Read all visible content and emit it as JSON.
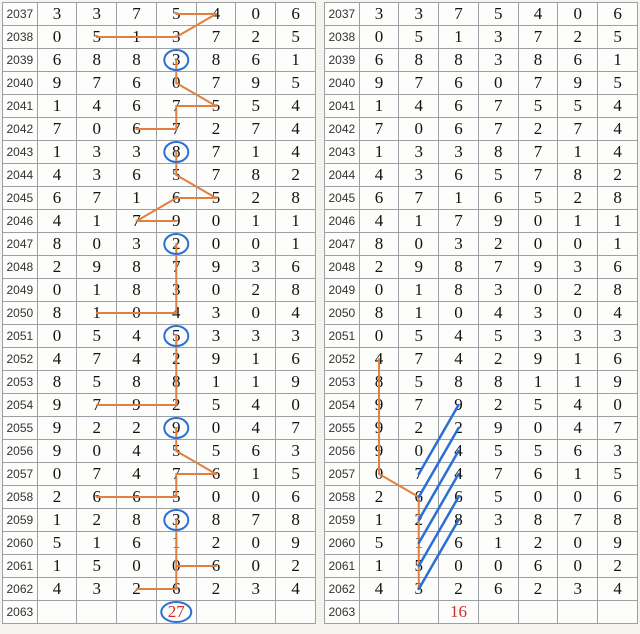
{
  "row_ids": [
    "2037",
    "2038",
    "2039",
    "2040",
    "2041",
    "2042",
    "2043",
    "2044",
    "2045",
    "2046",
    "2047",
    "2048",
    "2049",
    "2050",
    "2051",
    "2052",
    "2053",
    "2054",
    "2055",
    "2056",
    "2057",
    "2058",
    "2059",
    "2060",
    "2061",
    "2062"
  ],
  "footer_id": "2063",
  "left_footer": "27",
  "right_footer": "16",
  "footer_color": "#c9302c",
  "circle_color": "#2a6fd6",
  "line_color_orange": "#e08040",
  "line_color_blue": "#2a6fd6",
  "cell_border_color": "#9aa0a6",
  "background_color": "#f5f3ec",
  "table_background": "#fdfdfb",
  "left": {
    "data": [
      [
        "3",
        "3",
        "7",
        "5",
        "4",
        "0",
        "6"
      ],
      [
        "0",
        "5",
        "1",
        "3",
        "7",
        "2",
        "5"
      ],
      [
        "6",
        "8",
        "8",
        "3",
        "8",
        "6",
        "1"
      ],
      [
        "9",
        "7",
        "6",
        "0",
        "7",
        "9",
        "5"
      ],
      [
        "1",
        "4",
        "6",
        "7",
        "5",
        "5",
        "4"
      ],
      [
        "7",
        "0",
        "6",
        "7",
        "2",
        "7",
        "4"
      ],
      [
        "1",
        "3",
        "3",
        "8",
        "7",
        "1",
        "4"
      ],
      [
        "4",
        "3",
        "6",
        "5",
        "7",
        "8",
        "2"
      ],
      [
        "6",
        "7",
        "1",
        "6",
        "5",
        "2",
        "8"
      ],
      [
        "4",
        "1",
        "7",
        "9",
        "0",
        "1",
        "1"
      ],
      [
        "8",
        "0",
        "3",
        "2",
        "0",
        "0",
        "1"
      ],
      [
        "2",
        "9",
        "8",
        "7",
        "9",
        "3",
        "6"
      ],
      [
        "0",
        "1",
        "8",
        "3",
        "0",
        "2",
        "8"
      ],
      [
        "8",
        "1",
        "0",
        "4",
        "3",
        "0",
        "4"
      ],
      [
        "0",
        "5",
        "4",
        "5",
        "3",
        "3",
        "3"
      ],
      [
        "4",
        "7",
        "4",
        "2",
        "9",
        "1",
        "6"
      ],
      [
        "8",
        "5",
        "8",
        "8",
        "1",
        "1",
        "9"
      ],
      [
        "9",
        "7",
        "9",
        "2",
        "5",
        "4",
        "0"
      ],
      [
        "9",
        "2",
        "2",
        "9",
        "0",
        "4",
        "7"
      ],
      [
        "9",
        "0",
        "4",
        "5",
        "5",
        "6",
        "3"
      ],
      [
        "0",
        "7",
        "4",
        "7",
        "6",
        "1",
        "5"
      ],
      [
        "2",
        "6",
        "6",
        "5",
        "0",
        "0",
        "6"
      ],
      [
        "1",
        "2",
        "8",
        "3",
        "8",
        "7",
        "8"
      ],
      [
        "5",
        "1",
        "6",
        "1",
        "2",
        "0",
        "9"
      ],
      [
        "1",
        "5",
        "0",
        "0",
        "6",
        "0",
        "2"
      ],
      [
        "4",
        "3",
        "2",
        "6",
        "2",
        "3",
        "4"
      ]
    ],
    "circles": [
      {
        "row": 2,
        "col": 3
      },
      {
        "row": 6,
        "col": 3
      },
      {
        "row": 10,
        "col": 3
      },
      {
        "row": 14,
        "col": 3
      },
      {
        "row": 18,
        "col": 3
      },
      {
        "row": 22,
        "col": 3
      }
    ],
    "footer_circle": true,
    "lines": [
      {
        "r1": 0,
        "c1": 3,
        "r2": 0,
        "c2": 4,
        "color": "orange"
      },
      {
        "r1": 0,
        "c1": 4,
        "r2": 1,
        "c2": 3,
        "color": "orange"
      },
      {
        "r1": 1,
        "c1": 1,
        "r2": 1,
        "c2": 3,
        "color": "orange"
      },
      {
        "r1": 2,
        "c1": 3,
        "r2": 3,
        "c2": 3,
        "color": "orange"
      },
      {
        "r1": 3,
        "c1": 3,
        "r2": 4,
        "c2": 4,
        "color": "orange"
      },
      {
        "r1": 4,
        "c1": 3,
        "r2": 4,
        "c2": 4,
        "color": "orange"
      },
      {
        "r1": 4,
        "c1": 3,
        "r2": 5,
        "c2": 3,
        "color": "orange"
      },
      {
        "r1": 5,
        "c1": 2,
        "r2": 5,
        "c2": 3,
        "color": "orange"
      },
      {
        "r1": 6,
        "c1": 3,
        "r2": 7,
        "c2": 3,
        "color": "orange"
      },
      {
        "r1": 7,
        "c1": 3,
        "r2": 8,
        "c2": 4,
        "color": "orange"
      },
      {
        "r1": 8,
        "c1": 3,
        "r2": 8,
        "c2": 4,
        "color": "orange"
      },
      {
        "r1": 9,
        "c1": 2,
        "r2": 9,
        "c2": 3,
        "color": "orange"
      },
      {
        "r1": 9,
        "c1": 2,
        "r2": 8,
        "c2": 3,
        "color": "orange"
      },
      {
        "r1": 10,
        "c1": 3,
        "r2": 11,
        "c2": 3,
        "color": "orange"
      },
      {
        "r1": 11,
        "c1": 3,
        "r2": 12,
        "c2": 3,
        "color": "orange"
      },
      {
        "r1": 12,
        "c1": 3,
        "r2": 13,
        "c2": 3,
        "color": "orange"
      },
      {
        "r1": 13,
        "c1": 2,
        "r2": 13,
        "c2": 3,
        "color": "orange"
      },
      {
        "r1": 13,
        "c1": 1,
        "r2": 13,
        "c2": 2,
        "color": "orange"
      },
      {
        "r1": 14,
        "c1": 3,
        "r2": 15,
        "c2": 3,
        "color": "orange"
      },
      {
        "r1": 15,
        "c1": 3,
        "r2": 16,
        "c2": 3,
        "color": "orange"
      },
      {
        "r1": 16,
        "c1": 3,
        "r2": 17,
        "c2": 3,
        "color": "orange"
      },
      {
        "r1": 17,
        "c1": 2,
        "r2": 17,
        "c2": 3,
        "color": "orange"
      },
      {
        "r1": 17,
        "c1": 1,
        "r2": 17,
        "c2": 2,
        "color": "orange"
      },
      {
        "r1": 18,
        "c1": 3,
        "r2": 19,
        "c2": 3,
        "color": "orange"
      },
      {
        "r1": 19,
        "c1": 3,
        "r2": 20,
        "c2": 4,
        "color": "orange"
      },
      {
        "r1": 20,
        "c1": 3,
        "r2": 20,
        "c2": 4,
        "color": "orange"
      },
      {
        "r1": 20,
        "c1": 3,
        "r2": 21,
        "c2": 3,
        "color": "orange"
      },
      {
        "r1": 21,
        "c1": 1,
        "r2": 21,
        "c2": 3,
        "color": "orange"
      },
      {
        "r1": 22,
        "c1": 3,
        "r2": 23,
        "c2": 3,
        "color": "orange"
      },
      {
        "r1": 23,
        "c1": 3,
        "r2": 24,
        "c2": 3,
        "color": "orange"
      },
      {
        "r1": 24,
        "c1": 3,
        "r2": 24,
        "c2": 4,
        "color": "orange"
      },
      {
        "r1": 24,
        "c1": 3,
        "r2": 25,
        "c2": 3,
        "color": "orange"
      },
      {
        "r1": 25,
        "c1": 2,
        "r2": 25,
        "c2": 3,
        "color": "orange"
      }
    ]
  },
  "right": {
    "data": [
      [
        "3",
        "3",
        "7",
        "5",
        "4",
        "0",
        "6"
      ],
      [
        "0",
        "5",
        "1",
        "3",
        "7",
        "2",
        "5"
      ],
      [
        "6",
        "8",
        "8",
        "3",
        "8",
        "6",
        "1"
      ],
      [
        "9",
        "7",
        "6",
        "0",
        "7",
        "9",
        "5"
      ],
      [
        "1",
        "4",
        "6",
        "7",
        "5",
        "5",
        "4"
      ],
      [
        "7",
        "0",
        "6",
        "7",
        "2",
        "7",
        "4"
      ],
      [
        "1",
        "3",
        "3",
        "8",
        "7",
        "1",
        "4"
      ],
      [
        "4",
        "3",
        "6",
        "5",
        "7",
        "8",
        "2"
      ],
      [
        "6",
        "7",
        "1",
        "6",
        "5",
        "2",
        "8"
      ],
      [
        "4",
        "1",
        "7",
        "9",
        "0",
        "1",
        "1"
      ],
      [
        "8",
        "0",
        "3",
        "2",
        "0",
        "0",
        "1"
      ],
      [
        "2",
        "9",
        "8",
        "7",
        "9",
        "3",
        "6"
      ],
      [
        "0",
        "1",
        "8",
        "3",
        "0",
        "2",
        "8"
      ],
      [
        "8",
        "1",
        "0",
        "4",
        "3",
        "0",
        "4"
      ],
      [
        "0",
        "5",
        "4",
        "5",
        "3",
        "3",
        "3"
      ],
      [
        "4",
        "7",
        "4",
        "2",
        "9",
        "1",
        "6"
      ],
      [
        "8",
        "5",
        "8",
        "8",
        "1",
        "1",
        "9"
      ],
      [
        "9",
        "7",
        "9",
        "2",
        "5",
        "4",
        "0"
      ],
      [
        "9",
        "2",
        "2",
        "9",
        "0",
        "4",
        "7"
      ],
      [
        "9",
        "0",
        "4",
        "5",
        "5",
        "6",
        "3"
      ],
      [
        "0",
        "7",
        "4",
        "7",
        "6",
        "1",
        "5"
      ],
      [
        "2",
        "6",
        "6",
        "5",
        "0",
        "0",
        "6"
      ],
      [
        "1",
        "2",
        "8",
        "3",
        "8",
        "7",
        "8"
      ],
      [
        "5",
        "1",
        "6",
        "1",
        "2",
        "0",
        "9"
      ],
      [
        "1",
        "5",
        "0",
        "0",
        "6",
        "0",
        "2"
      ],
      [
        "4",
        "3",
        "2",
        "6",
        "2",
        "3",
        "4"
      ]
    ],
    "circles": [],
    "footer_circle": false,
    "lines": [
      {
        "r1": 15,
        "c1": 0,
        "r2": 16,
        "c2": 0,
        "color": "orange"
      },
      {
        "r1": 16,
        "c1": 0,
        "r2": 17,
        "c2": 0,
        "color": "orange"
      },
      {
        "r1": 17,
        "c1": 0,
        "r2": 18,
        "c2": 0,
        "color": "orange"
      },
      {
        "r1": 18,
        "c1": 0,
        "r2": 19,
        "c2": 0,
        "color": "orange"
      },
      {
        "r1": 19,
        "c1": 0,
        "r2": 20,
        "c2": 0,
        "color": "orange"
      },
      {
        "r1": 20,
        "c1": 0,
        "r2": 21,
        "c2": 1,
        "color": "orange"
      },
      {
        "r1": 21,
        "c1": 1,
        "r2": 22,
        "c2": 1,
        "color": "orange"
      },
      {
        "r1": 22,
        "c1": 1,
        "r2": 23,
        "c2": 1,
        "color": "orange"
      },
      {
        "r1": 23,
        "c1": 1,
        "r2": 24,
        "c2": 1,
        "color": "orange"
      },
      {
        "r1": 24,
        "c1": 1,
        "r2": 25,
        "c2": 1,
        "color": "orange"
      },
      {
        "r1": 17,
        "c1": 2,
        "r2": 20,
        "c2": 1,
        "color": "blue"
      },
      {
        "r1": 18,
        "c1": 2,
        "r2": 21,
        "c2": 1,
        "color": "blue"
      },
      {
        "r1": 19,
        "c1": 2,
        "r2": 22,
        "c2": 1,
        "color": "blue"
      },
      {
        "r1": 20,
        "c1": 2,
        "r2": 23,
        "c2": 1,
        "color": "blue"
      },
      {
        "r1": 21,
        "c1": 2,
        "r2": 24,
        "c2": 1,
        "color": "blue"
      },
      {
        "r1": 22,
        "c1": 2,
        "r2": 25,
        "c2": 1,
        "color": "blue"
      }
    ]
  }
}
